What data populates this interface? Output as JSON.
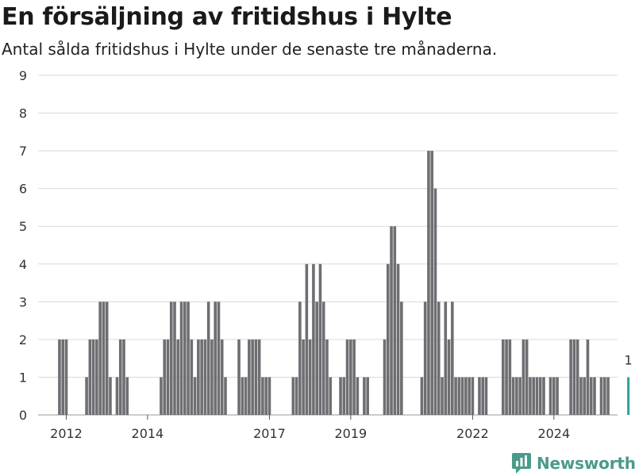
{
  "header": {
    "title": "En försäljning av fritidshus i Hylte",
    "subtitle": "Antal sålda fritidshus i Hylte under de senaste tre månaderna."
  },
  "brand": {
    "name": "Newsworthy"
  },
  "colors": {
    "bar": "#6e6e73",
    "highlight": "#2aa198",
    "grid": "#d9d9d9",
    "brand": "#4a9a8a"
  },
  "chart_data": {
    "type": "bar",
    "title": "En försäljning av fritidshus i Hylte",
    "subtitle": "Antal sålda fritidshus i Hylte under de senaste tre månaderna.",
    "xlabel": "",
    "ylabel": "",
    "ylim": [
      0,
      9
    ],
    "yticks": [
      "0",
      "1",
      "2",
      "3",
      "4",
      "5",
      "6",
      "7",
      "8",
      "9"
    ],
    "xticks": [
      "2012",
      "2014",
      "2017",
      "2019",
      "2022",
      "2024"
    ],
    "x_start": "2011-10",
    "grid": true,
    "annotation": {
      "label": "1",
      "value": 1
    },
    "values": [
      0,
      2,
      2,
      2,
      0,
      0,
      0,
      0,
      0,
      1,
      2,
      2,
      2,
      3,
      3,
      3,
      1,
      0,
      1,
      2,
      2,
      1,
      0,
      0,
      0,
      0,
      0,
      0,
      0,
      0,
      0,
      1,
      2,
      2,
      3,
      3,
      2,
      3,
      3,
      3,
      2,
      1,
      2,
      2,
      2,
      3,
      2,
      3,
      3,
      2,
      1,
      0,
      0,
      0,
      2,
      1,
      1,
      2,
      2,
      2,
      2,
      1,
      1,
      1,
      0,
      0,
      0,
      0,
      0,
      0,
      1,
      1,
      3,
      2,
      4,
      2,
      4,
      3,
      4,
      3,
      2,
      1,
      0,
      0,
      1,
      1,
      2,
      2,
      2,
      1,
      0,
      1,
      1,
      0,
      0,
      0,
      0,
      2,
      4,
      5,
      5,
      4,
      3,
      0,
      0,
      0,
      0,
      0,
      1,
      3,
      7,
      7,
      6,
      3,
      1,
      3,
      2,
      3,
      1,
      1,
      1,
      1,
      1,
      1,
      0,
      1,
      1,
      1,
      0,
      0,
      0,
      0,
      2,
      2,
      2,
      1,
      1,
      1,
      2,
      2,
      1,
      1,
      1,
      1,
      1,
      0,
      1,
      1,
      1,
      0,
      0,
      0,
      2,
      2,
      2,
      1,
      1,
      2,
      1,
      1,
      0,
      1,
      1,
      1,
      0,
      0,
      0,
      0,
      0,
      1
    ]
  }
}
